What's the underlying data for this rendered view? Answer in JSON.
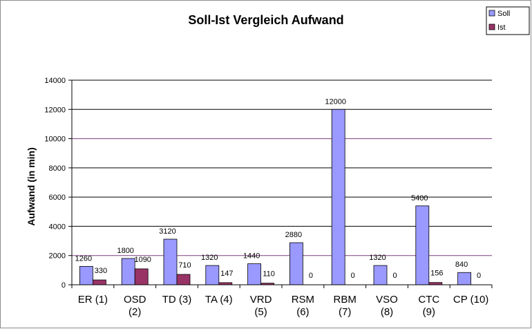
{
  "chart_data": {
    "type": "bar",
    "title": "Soll-Ist Vergleich Aufwand",
    "xlabel": "",
    "ylabel": "Aufwand (in min)",
    "ylim": [
      0,
      14000
    ],
    "yticks": [
      0,
      2000,
      4000,
      6000,
      8000,
      10000,
      12000,
      14000
    ],
    "categories": [
      [
        "ER (1)"
      ],
      [
        "OSD",
        "(2)"
      ],
      [
        "TD (3)"
      ],
      [
        "TA (4)"
      ],
      [
        "VRD",
        "(5)"
      ],
      [
        "RSM",
        "(6)"
      ],
      [
        "RBM",
        "(7)"
      ],
      [
        "VSO",
        "(8)"
      ],
      [
        "CTC",
        "(9)"
      ],
      [
        "CP (10)"
      ]
    ],
    "series": [
      {
        "name": "Soll",
        "color": "#9999ff",
        "values": [
          1260,
          1800,
          3120,
          1320,
          1440,
          2880,
          12000,
          1320,
          5400,
          840
        ]
      },
      {
        "name": "Ist",
        "color": "#993366",
        "values": [
          330,
          1090,
          710,
          147,
          110,
          0,
          0,
          0,
          156,
          0
        ]
      }
    ],
    "grid": true,
    "legend_position": "top-right"
  }
}
